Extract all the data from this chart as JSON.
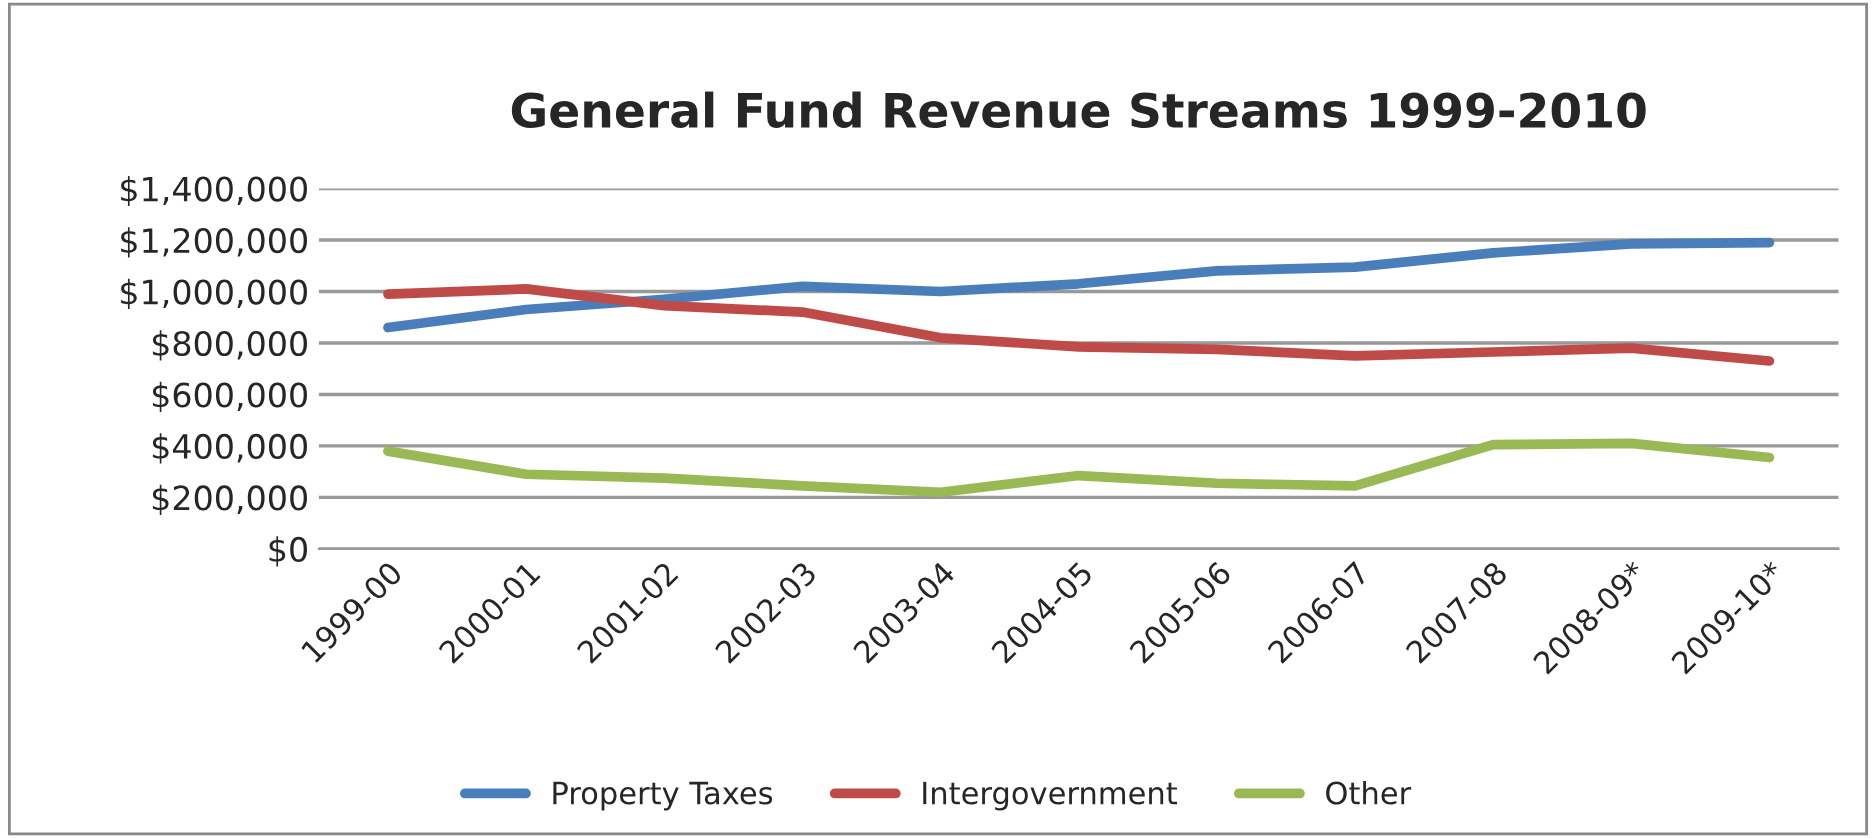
{
  "chart_data": {
    "type": "line",
    "title": "General Fund Revenue Streams 1999-2010",
    "categories": [
      "1999-00",
      "2000-01",
      "2001-02",
      "2002-03",
      "2003-04",
      "2004-05",
      "2005-06",
      "2006-07",
      "2007-08",
      "2008-09*",
      "2009-10*"
    ],
    "series": [
      {
        "name": "Property Taxes",
        "color": "#4a7ebb",
        "values": [
          860000,
          930000,
          970000,
          1020000,
          1000000,
          1030000,
          1080000,
          1095000,
          1150000,
          1185000,
          1190000
        ]
      },
      {
        "name": "Intergovernment",
        "color": "#be4b48",
        "values": [
          990000,
          1010000,
          945000,
          920000,
          820000,
          785000,
          775000,
          750000,
          765000,
          780000,
          730000
        ]
      },
      {
        "name": "Other",
        "color": "#98b954",
        "values": [
          380000,
          290000,
          275000,
          245000,
          220000,
          285000,
          255000,
          245000,
          405000,
          410000,
          355000
        ]
      }
    ],
    "ylim": [
      0,
      1400000
    ],
    "yticks": [
      {
        "value": 0,
        "label": "$0"
      },
      {
        "value": 200000,
        "label": "$200,000"
      },
      {
        "value": 400000,
        "label": "$400,000"
      },
      {
        "value": 600000,
        "label": "$600,000"
      },
      {
        "value": 800000,
        "label": "$800,000"
      },
      {
        "value": 1000000,
        "label": "$1,000,000"
      },
      {
        "value": 1200000,
        "label": "$1,200,000"
      },
      {
        "value": 1400000,
        "label": "$1,400,000"
      }
    ],
    "grid": "y",
    "legend": "bottom",
    "marker": "none",
    "line_style": "solid"
  }
}
